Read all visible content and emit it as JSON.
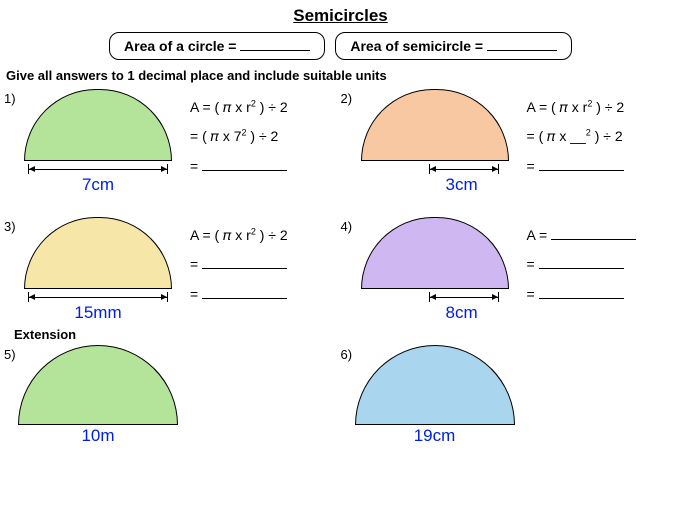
{
  "title": "Semicircles",
  "formula_circle_label": "Area of a circle =",
  "formula_semi_label": "Area of semicircle =",
  "instruction": "Give all answers to 1 decimal place and include suitable units",
  "extension_label": "Extension",
  "colors": {
    "q1": "#b4e39a",
    "q2": "#f8c8a2",
    "q3": "#f6e6a8",
    "q4": "#cfb8f2",
    "q5": "#b4e39a",
    "q6": "#a9d5ef",
    "stroke": "#000000",
    "dim_text": "#0020e0"
  },
  "problems": [
    {
      "num": "1)",
      "dim": "7cm",
      "semi_w": 148,
      "semi_h": 72,
      "line_w": 140,
      "line_indent": 0,
      "radius_only": false,
      "work": [
        "A = ( 𝜋 x r<sup>2</sup> ) ÷ 2",
        "= ( 𝜋 x 7<sup>2</sup> ) ÷ 2",
        "= <span class='wblank'></span>"
      ]
    },
    {
      "num": "2)",
      "dim": "3cm",
      "semi_w": 148,
      "semi_h": 72,
      "line_w": 70,
      "line_indent": 74,
      "radius_only": true,
      "work": [
        "A = ( 𝜋 x r<sup>2</sup> ) ÷ 2",
        "= ( 𝜋 x __<sup>2</sup> ) ÷ 2",
        "= <span class='wblank'></span>"
      ]
    },
    {
      "num": "3)",
      "dim": "15mm",
      "semi_w": 148,
      "semi_h": 72,
      "line_w": 140,
      "line_indent": 0,
      "radius_only": false,
      "work": [
        "A = ( 𝜋 x r<sup>2</sup> ) ÷ 2",
        "= <span class='wblank'></span>",
        "= <span class='wblank'></span>"
      ]
    },
    {
      "num": "4)",
      "dim": "8cm",
      "semi_w": 148,
      "semi_h": 72,
      "line_w": 70,
      "line_indent": 74,
      "radius_only": true,
      "work": [
        "A = <span class='wblank'></span>",
        "= <span class='wblank'></span>",
        "= <span class='wblank'></span>"
      ]
    },
    {
      "num": "5)",
      "dim": "10m",
      "semi_w": 160,
      "semi_h": 80,
      "line_w": 0,
      "line_indent": 0,
      "radius_only": false,
      "work": []
    },
    {
      "num": "6)",
      "dim": "19cm",
      "semi_w": 160,
      "semi_h": 80,
      "line_w": 0,
      "line_indent": 0,
      "radius_only": false,
      "work": []
    }
  ]
}
